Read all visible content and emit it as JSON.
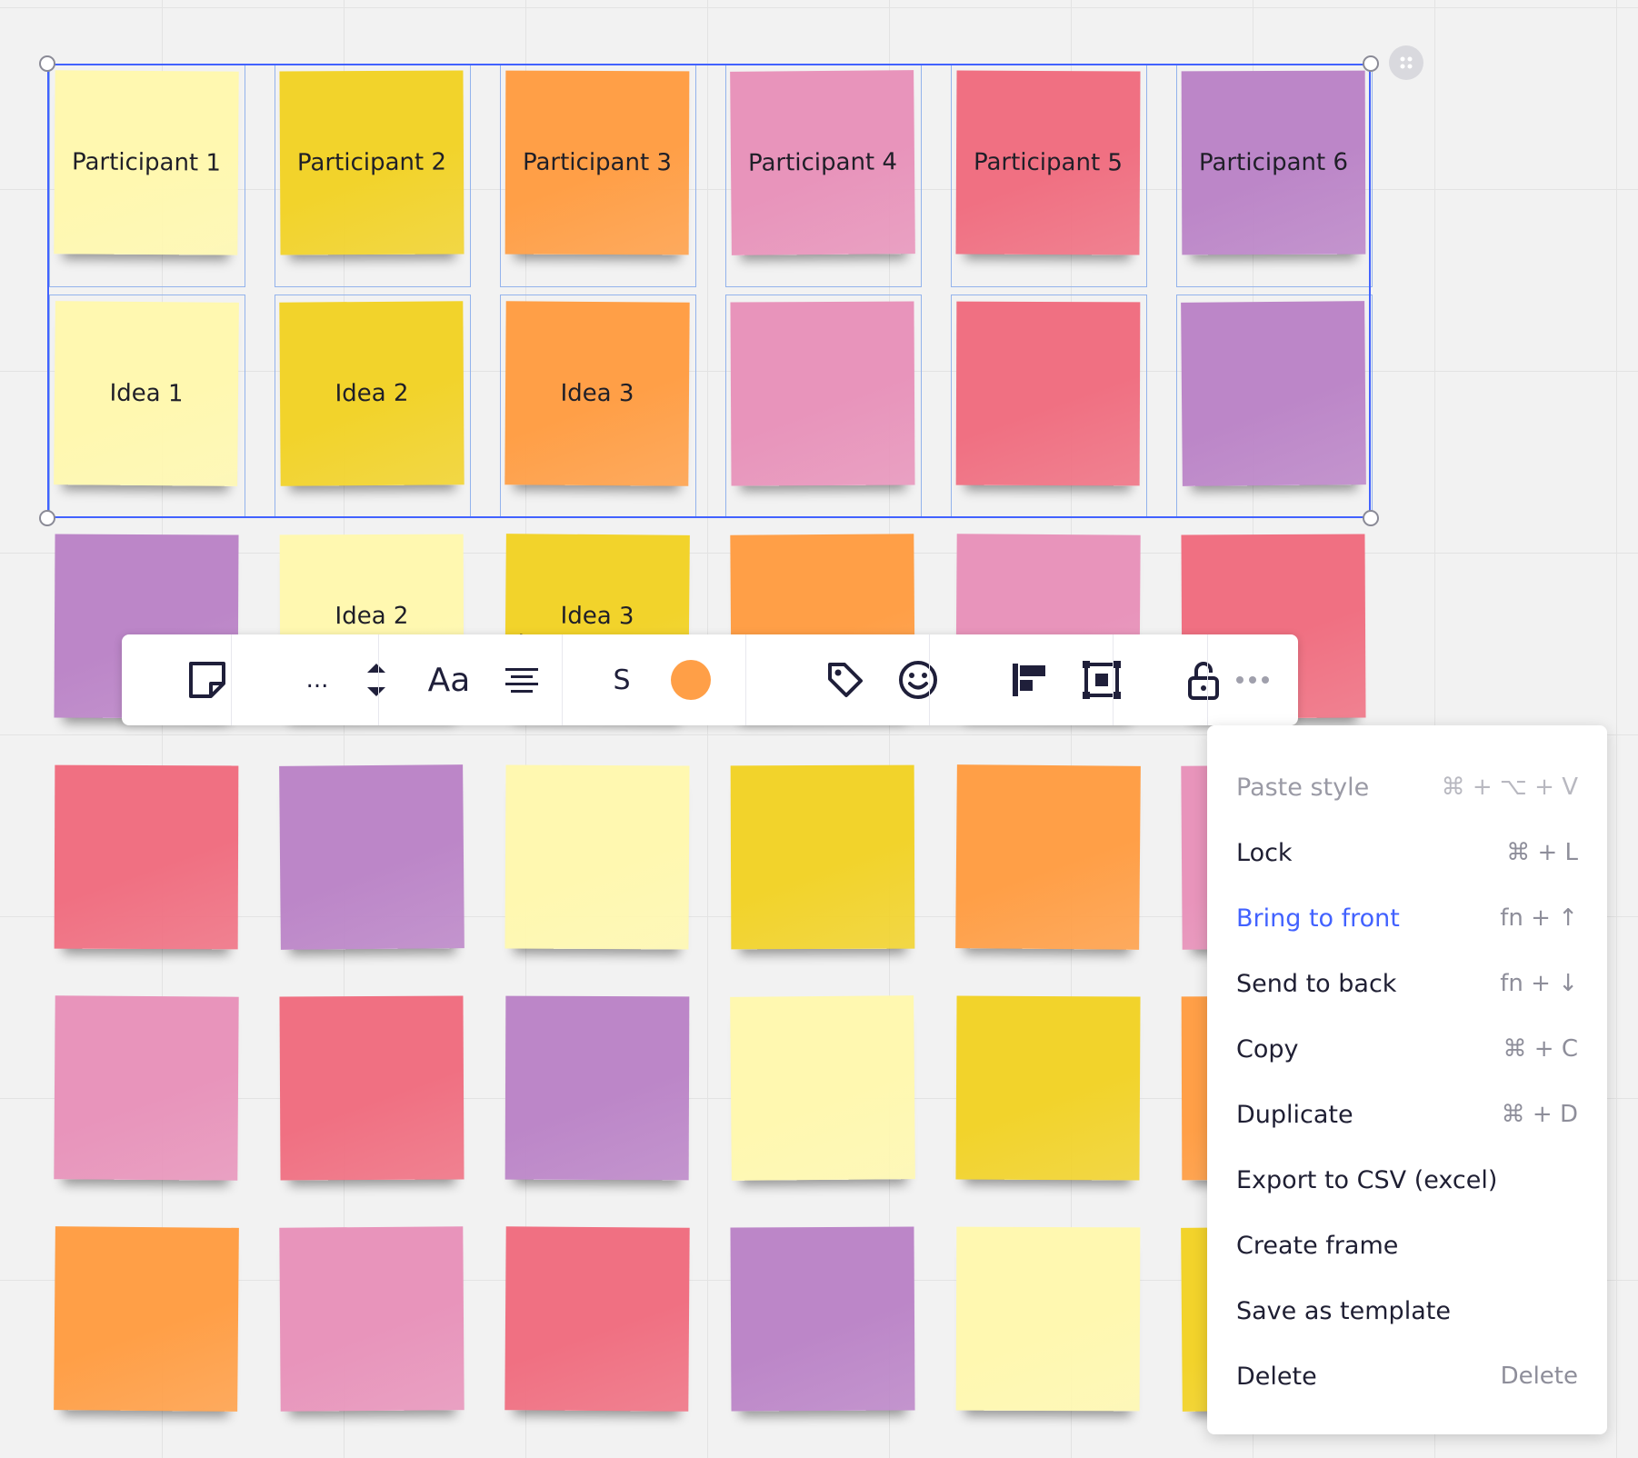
{
  "colors": {
    "light_yellow": "#fff8b0",
    "yellow": "#f2d32b",
    "orange": "#ff9f47",
    "pink": "#e894bb",
    "red": "#f07082",
    "purple": "#bc86c8",
    "accent": "#4262ff"
  },
  "stickies": [
    {
      "text": "Participant 1",
      "color": "light_yellow"
    },
    {
      "text": "Participant 2",
      "color": "yellow"
    },
    {
      "text": "Participant 3",
      "color": "orange"
    },
    {
      "text": "Participant 4",
      "color": "pink"
    },
    {
      "text": "Participant 5",
      "color": "red"
    },
    {
      "text": "Participant 6",
      "color": "purple"
    },
    {
      "text": "Idea 1",
      "color": "light_yellow"
    },
    {
      "text": "Idea 2",
      "color": "yellow"
    },
    {
      "text": "Idea 3",
      "color": "orange"
    },
    {
      "text": "",
      "color": "pink"
    },
    {
      "text": "",
      "color": "red"
    },
    {
      "text": "",
      "color": "purple"
    },
    {
      "text": "",
      "color": "purple"
    },
    {
      "text": "Idea 2\nimprovement",
      "color": "light_yellow"
    },
    {
      "text": "Idea 3\nimprovement",
      "color": "yellow"
    },
    {
      "text": "",
      "color": "orange"
    },
    {
      "text": "",
      "color": "pink"
    },
    {
      "text": "",
      "color": "red"
    },
    {
      "text": "",
      "color": "red"
    },
    {
      "text": "",
      "color": "purple"
    },
    {
      "text": "",
      "color": "light_yellow"
    },
    {
      "text": "",
      "color": "yellow"
    },
    {
      "text": "",
      "color": "orange"
    },
    {
      "text": "",
      "color": "pink"
    },
    {
      "text": "",
      "color": "pink"
    },
    {
      "text": "",
      "color": "red"
    },
    {
      "text": "",
      "color": "purple"
    },
    {
      "text": "",
      "color": "light_yellow"
    },
    {
      "text": "",
      "color": "yellow"
    },
    {
      "text": "",
      "color": "orange"
    },
    {
      "text": "",
      "color": "orange"
    },
    {
      "text": "",
      "color": "pink"
    },
    {
      "text": "",
      "color": "red"
    },
    {
      "text": "",
      "color": "purple"
    },
    {
      "text": "",
      "color": "light_yellow"
    },
    {
      "text": "",
      "color": "yellow"
    }
  ],
  "toolbar": {
    "sticky_type_icon": "sticky-note-icon",
    "font_family": "...",
    "text_style_label": "Aa",
    "size_label": "S",
    "fill_color": "#ff9f47",
    "icons": [
      "tag-icon",
      "emoji-icon",
      "align-icon",
      "frame-icon",
      "unlock-icon",
      "more-icon"
    ]
  },
  "context_menu": {
    "items": [
      {
        "label": "Paste style",
        "shortcut": "⌘ + ⌥ + V",
        "state": "disabled"
      },
      {
        "label": "Lock",
        "shortcut": "⌘ + L",
        "state": "normal"
      },
      {
        "label": "Bring to front",
        "shortcut": "fn + ↑",
        "state": "active"
      },
      {
        "label": "Send to back",
        "shortcut": "fn + ↓",
        "state": "normal"
      },
      {
        "label": "Copy",
        "shortcut": "⌘ + C",
        "state": "normal"
      },
      {
        "label": "Duplicate",
        "shortcut": "⌘ + D",
        "state": "normal"
      },
      {
        "label": "Export to CSV (excel)",
        "shortcut": "",
        "state": "normal"
      },
      {
        "label": "Create frame",
        "shortcut": "",
        "state": "normal"
      },
      {
        "label": "Save as template",
        "shortcut": "",
        "state": "normal"
      },
      {
        "label": "Delete",
        "shortcut": "Delete",
        "state": "normal"
      }
    ]
  }
}
